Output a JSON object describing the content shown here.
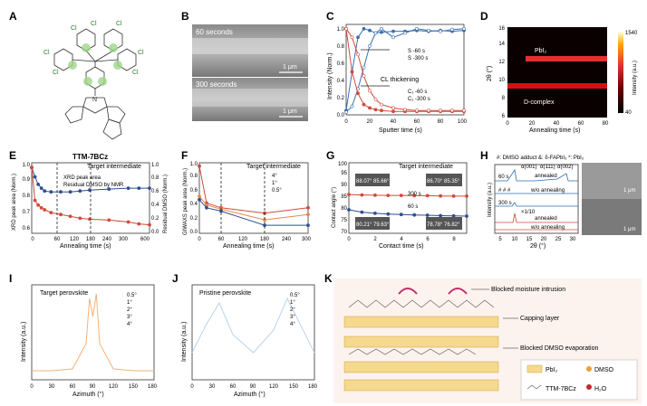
{
  "panels": {
    "A": {
      "letter": "A",
      "caption": "TTM-7BCz",
      "atoms": {
        "cl": "Cl",
        "n": "N"
      },
      "colors": {
        "highlight": "#9fd68a"
      }
    },
    "B": {
      "letter": "B",
      "label_top": "60 seconds",
      "label_bottom": "300 seconds",
      "scale": "1 μm"
    },
    "C": {
      "letter": "C",
      "xlabel": "Sputter time (s)",
      "ylabel": "Intensity (Norm.)",
      "annotation": "CL thickening",
      "legend": [
        "S -60 s",
        "S -300 s",
        "C₁ -60 s",
        "C₁ -300 s"
      ],
      "xticks": [
        "0",
        "20",
        "40",
        "60",
        "80",
        "100"
      ],
      "yticks": [
        "0.0",
        "0.2",
        "0.4",
        "0.6",
        "0.8",
        "1.0"
      ]
    },
    "D": {
      "letter": "D",
      "xlabel": "Annealing time (s)",
      "ylabel": "2θ (°)",
      "label_pbi2": "PbI₂",
      "label_dcomplex": "D-complex",
      "colorbar_label": "Intensity (a.u.)",
      "cb_max": "1540",
      "cb_min": "40",
      "xticks": [
        "0",
        "20",
        "40",
        "60",
        "80"
      ],
      "yticks": [
        "6",
        "8",
        "10",
        "12",
        "14",
        "16"
      ]
    },
    "E": {
      "letter": "E",
      "title": "Target intermediate",
      "xlabel": "Annealing time (s)",
      "ylabel_left": "XRD peak area (Norm.)",
      "ylabel_right": "Residual DMSO (Norm.)",
      "legend": [
        "XRD peak area",
        "Residual DMSO by NMR"
      ],
      "xticks": [
        "0",
        "60",
        "120",
        "180",
        "240",
        "300",
        "600"
      ],
      "yticks_left": [
        "0.6",
        "0.7",
        "0.8",
        "0.9",
        "1.0"
      ],
      "yticks_right": [
        "0.0",
        "0.2",
        "0.4",
        "0.6",
        "0.8",
        "1.0"
      ]
    },
    "F": {
      "letter": "F",
      "title": "Target intermediate",
      "xlabel": "Annealing time (s)",
      "ylabel": "GIWAXS peak area (Norm.)",
      "legend": [
        "4°",
        "1°",
        "0.5°"
      ],
      "xticks": [
        "0",
        "60",
        "120",
        "180",
        "240",
        "300"
      ],
      "yticks": [
        "0.0",
        "0.2",
        "0.4",
        "0.6",
        "0.8",
        "1.0"
      ]
    },
    "G": {
      "letter": "G",
      "title": "Target intermediate",
      "xlabel": "Contact time (s)",
      "ylabel": "Contact angle (°)",
      "legend": [
        "300 s",
        "60 s"
      ],
      "angles": [
        "88.07°",
        "85.66°",
        "86.70°",
        "85.35°",
        "80.21°",
        "79.63°",
        "78.78°",
        "76.82°"
      ],
      "xticks": [
        "0",
        "2",
        "4",
        "6",
        "8"
      ],
      "yticks": [
        "70",
        "75",
        "80",
        "85",
        "90",
        "95",
        "100"
      ]
    },
    "H": {
      "letter": "H",
      "title": "#: DMSO adduct  &: δ-FAPbI₃  *: PbI₂",
      "xlabel": "2θ (°)",
      "ylabel": "Intensity (a.u.)",
      "labels": [
        "60 s",
        "300 s",
        "annealed",
        "w/o annealing",
        "annealed",
        "w/o annealing",
        "×1/10",
        "# # #",
        "α(001)",
        "α(111)",
        "α(002)"
      ],
      "scale": "1 μm",
      "xticks": [
        "5",
        "10",
        "15",
        "20",
        "25",
        "30"
      ]
    },
    "I": {
      "letter": "I",
      "title": "Target perovskite",
      "xlabel": "Azimuth (°)",
      "ylabel": "Intensity (a.u.)",
      "legend": [
        "0.5°",
        "1°",
        "2°",
        "3°",
        "4°"
      ],
      "xticks": [
        "0",
        "30",
        "60",
        "90",
        "120",
        "150",
        "180"
      ]
    },
    "J": {
      "letter": "J",
      "title": "Pristine perovskite",
      "xlabel": "Azimuth (°)",
      "ylabel": "Intensity (a.u.)",
      "legend": [
        "0.5°",
        "1°",
        "2°",
        "3°",
        "4°"
      ],
      "xticks": [
        "0",
        "30",
        "60",
        "90",
        "120",
        "150",
        "180"
      ]
    },
    "K": {
      "letter": "K",
      "label_moisture": "Blocked moisture intrusion",
      "label_capping": "Capping layer",
      "label_dmso": "Blocked DMSO evaporation",
      "legend": [
        "PbI₂",
        "DMSO",
        "TTM-7BCz",
        "H₂O"
      ]
    }
  },
  "chart_data": [
    {
      "type": "line",
      "panel": "C",
      "x": [
        0,
        5,
        10,
        15,
        20,
        25,
        30,
        40,
        50,
        60,
        70,
        80,
        90,
        100
      ],
      "series": [
        {
          "name": "S -60 s",
          "values": [
            0.05,
            0.5,
            0.9,
            1.0,
            0.98,
            0.95,
            0.96,
            0.97,
            0.97,
            0.98,
            0.97,
            0.98,
            0.97,
            0.98
          ],
          "color": "#3a6fb0"
        },
        {
          "name": "S -300 s",
          "values": [
            0.03,
            0.1,
            0.3,
            0.55,
            0.8,
            0.95,
            1.0,
            0.9,
            0.95,
            1.0,
            0.98,
            0.97,
            0.99,
            1.0
          ],
          "color": "#3a6fb0"
        },
        {
          "name": "C₁ -60 s",
          "values": [
            1.0,
            0.5,
            0.25,
            0.12,
            0.08,
            0.06,
            0.05,
            0.04,
            0.04,
            0.04,
            0.04,
            0.04,
            0.04,
            0.04
          ],
          "color": "#d04a3a"
        },
        {
          "name": "C₁ -300 s",
          "values": [
            1.0,
            0.9,
            0.7,
            0.45,
            0.28,
            0.18,
            0.12,
            0.08,
            0.06,
            0.05,
            0.05,
            0.05,
            0.05,
            0.05
          ],
          "color": "#d04a3a"
        }
      ],
      "xlim": [
        0,
        100
      ],
      "ylim": [
        0,
        1.05
      ]
    },
    {
      "type": "line",
      "panel": "E",
      "x": [
        0,
        10,
        20,
        30,
        40,
        60,
        90,
        120,
        150,
        180,
        240,
        300,
        450,
        600
      ],
      "series": [
        {
          "name": "XRD peak area",
          "values": [
            1.0,
            0.9,
            0.82,
            0.78,
            0.75,
            0.74,
            0.74,
            0.74,
            0.75,
            0.76,
            0.77,
            0.78,
            0.78,
            0.78
          ],
          "color": "#2f4f8f"
        },
        {
          "name": "Residual DMSO by NMR",
          "values": [
            1.0,
            0.65,
            0.6,
            0.57,
            0.55,
            0.52,
            0.5,
            0.48,
            0.46,
            0.45,
            0.44,
            0.42,
            0.4,
            0.39
          ],
          "color": "#d04a3a"
        }
      ]
    },
    {
      "type": "line",
      "panel": "F",
      "x": [
        0,
        20,
        60,
        180,
        300
      ],
      "series": [
        {
          "name": "4°",
          "values": [
            1.0,
            0.45,
            0.38,
            0.3,
            0.38
          ],
          "color": "#d04a3a"
        },
        {
          "name": "1°",
          "values": [
            0.55,
            0.42,
            0.36,
            0.2,
            0.28
          ],
          "color": "#e08a4a"
        },
        {
          "name": "0.5°",
          "values": [
            0.5,
            0.38,
            0.33,
            0.12,
            0.12
          ],
          "color": "#2f4f8f"
        }
      ],
      "xlim": [
        0,
        300
      ],
      "ylim": [
        0,
        1.0
      ]
    },
    {
      "type": "line",
      "panel": "G",
      "x": [
        0,
        1,
        2,
        3,
        4,
        5,
        6,
        7,
        8,
        9
      ],
      "series": [
        {
          "name": "300 s",
          "values": [
            86.5,
            86.3,
            86.2,
            86.1,
            86.1,
            86.0,
            86.0,
            85.9,
            85.8,
            85.8
          ],
          "color": "#d04a3a"
        },
        {
          "name": "60 s",
          "values": [
            80.0,
            79.0,
            78.5,
            78.2,
            78.0,
            77.8,
            77.7,
            77.5,
            77.4,
            77.3
          ],
          "color": "#2f4f8f"
        }
      ],
      "xlim": [
        0,
        9
      ],
      "ylim": [
        70,
        100
      ]
    },
    {
      "type": "line",
      "panel": "I",
      "x": [
        0,
        30,
        60,
        80,
        85,
        90,
        95,
        100,
        120,
        150,
        180
      ],
      "series": [
        {
          "name": "0.5°",
          "values": [
            0.1,
            0.1,
            0.12,
            0.4,
            0.9,
            0.7,
            0.95,
            0.4,
            0.12,
            0.1,
            0.1
          ]
        }
      ]
    },
    {
      "type": "line",
      "panel": "J",
      "x": [
        0,
        20,
        40,
        60,
        90,
        120,
        140,
        160,
        180
      ],
      "series": [
        {
          "name": "4°",
          "values": [
            0.3,
            0.6,
            0.85,
            0.5,
            0.3,
            0.55,
            0.9,
            0.6,
            0.3
          ]
        }
      ]
    }
  ]
}
